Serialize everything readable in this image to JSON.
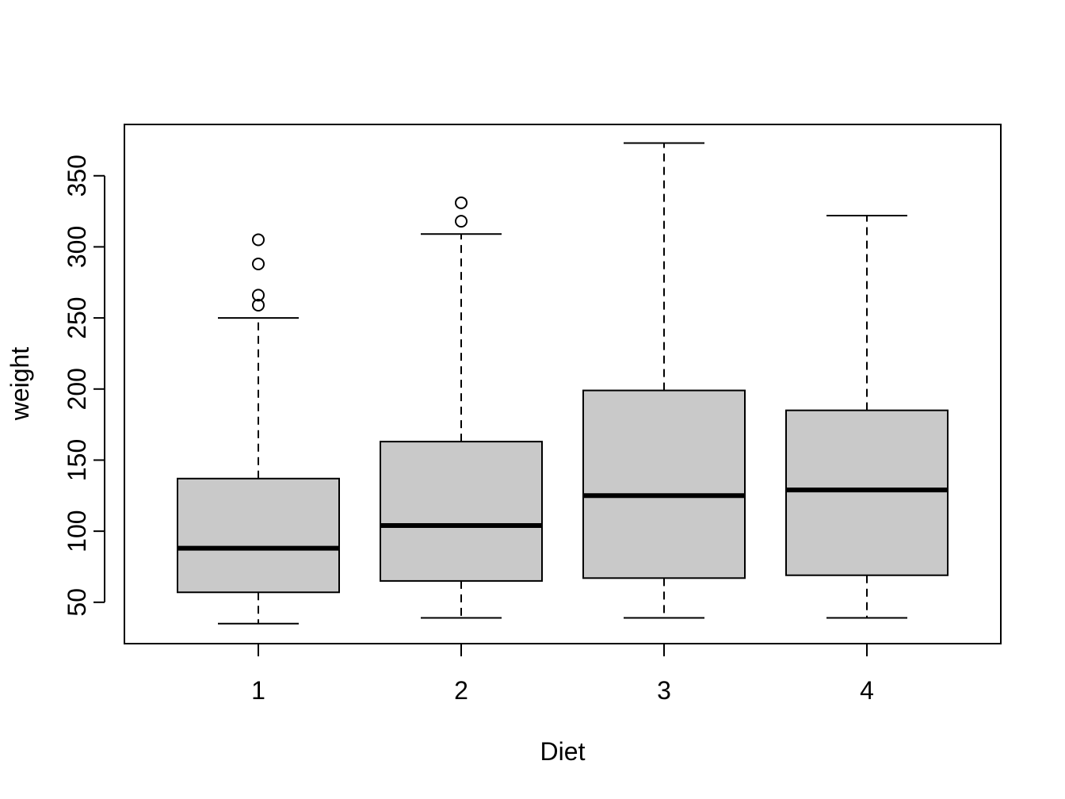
{
  "chart_data": {
    "type": "boxplot",
    "xlabel": "Diet",
    "ylabel": "weight",
    "ylim": [
      20.9,
      386.1
    ],
    "yticks": [
      50,
      100,
      150,
      200,
      250,
      300,
      350
    ],
    "grid": false,
    "box_fill": "#c9c9c9",
    "categories": [
      "1",
      "2",
      "3",
      "4"
    ],
    "boxes": [
      {
        "category": "1",
        "whisker_low": 35,
        "q1": 57,
        "median": 88,
        "q3": 137,
        "whisker_high": 250,
        "outliers": [
          259,
          266,
          288,
          305
        ]
      },
      {
        "category": "2",
        "whisker_low": 39,
        "q1": 65,
        "median": 104,
        "q3": 163,
        "whisker_high": 309,
        "outliers": [
          318,
          331
        ]
      },
      {
        "category": "3",
        "whisker_low": 39,
        "q1": 67,
        "median": 125,
        "q3": 199,
        "whisker_high": 373,
        "outliers": []
      },
      {
        "category": "4",
        "whisker_low": 39,
        "q1": 69,
        "median": 129,
        "q3": 185,
        "whisker_high": 322,
        "outliers": []
      }
    ]
  }
}
